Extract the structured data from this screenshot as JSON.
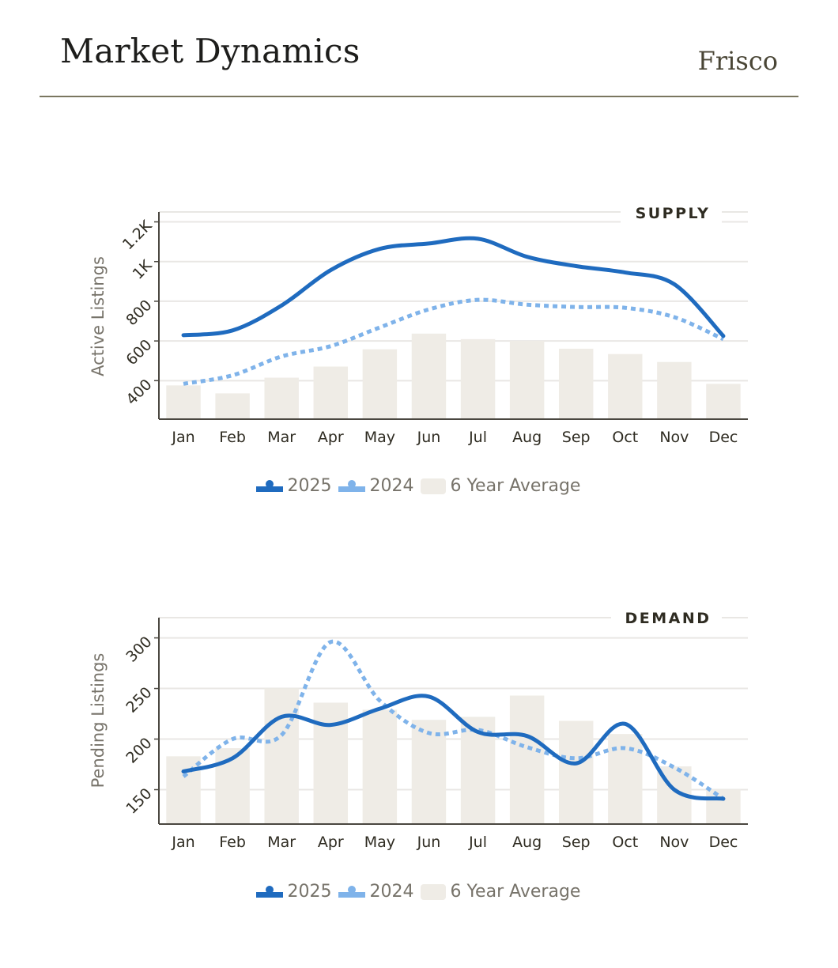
{
  "header": {
    "title": "Market Dynamics",
    "city": "Frisco"
  },
  "colors": {
    "series_2025": "#1f6bbf",
    "series_2024": "#7fb3ea",
    "average_bar": "#efece6",
    "gridline": "#e9e7e4",
    "axis": "#4a4740",
    "rule": "#7a7660"
  },
  "chart_data": [
    {
      "type": "line",
      "section_label": "SUPPLY",
      "title": "SUPPLY",
      "xlabel": "",
      "ylabel": "Active Listings",
      "categories": [
        "Jan",
        "Feb",
        "Mar",
        "Apr",
        "May",
        "Jun",
        "Jul",
        "Aug",
        "Sep",
        "Oct",
        "Nov",
        "Dec"
      ],
      "ylim": [
        206,
        1250
      ],
      "yticks": [
        400,
        600,
        800,
        1000,
        1200
      ],
      "ytick_labels": [
        "400",
        "600",
        "800",
        "1K",
        "1.2K"
      ],
      "grid": true,
      "legend_position": "bottom-center",
      "series": [
        {
          "name": "2025",
          "kind": "line",
          "style": "solid",
          "values": [
            629,
            653,
            779,
            957,
            1064,
            1091,
            1115,
            1024,
            977,
            945,
            886,
            625
          ]
        },
        {
          "name": "2024",
          "kind": "line",
          "style": "dotted",
          "values": [
            384,
            427,
            522,
            574,
            668,
            759,
            807,
            783,
            771,
            767,
            720,
            609
          ]
        },
        {
          "name": "6 Year Average",
          "kind": "bar",
          "values": [
            376,
            336,
            415,
            471,
            558,
            637,
            609,
            601,
            561,
            534,
            494,
            384
          ]
        }
      ],
      "legend": [
        "2025",
        "2024",
        "6 Year Average"
      ]
    },
    {
      "type": "line",
      "section_label": "DEMAND",
      "title": "DEMAND",
      "xlabel": "",
      "ylabel": "Pending Listings",
      "categories": [
        "Jan",
        "Feb",
        "Mar",
        "Apr",
        "May",
        "Jun",
        "Jul",
        "Aug",
        "Sep",
        "Oct",
        "Nov",
        "Dec"
      ],
      "ylim": [
        116,
        320
      ],
      "yticks": [
        150,
        200,
        250,
        300
      ],
      "ytick_labels": [
        "150",
        "200",
        "250",
        "300"
      ],
      "grid": true,
      "legend_position": "bottom-center",
      "series": [
        {
          "name": "2025",
          "kind": "line",
          "style": "solid",
          "values": [
            168,
            181,
            222,
            214,
            230,
            242,
            207,
            203,
            176,
            215,
            150,
            141
          ]
        },
        {
          "name": "2024",
          "kind": "line",
          "style": "dotted",
          "values": [
            163,
            200,
            204,
            296,
            238,
            206,
            209,
            192,
            181,
            191,
            172,
            141
          ]
        },
        {
          "name": "6 Year Average",
          "kind": "bar",
          "values": [
            183,
            191,
            250,
            236,
            229,
            219,
            222,
            243,
            218,
            205,
            173,
            150
          ]
        }
      ],
      "legend": [
        "2025",
        "2024",
        "6 Year Average"
      ]
    }
  ]
}
